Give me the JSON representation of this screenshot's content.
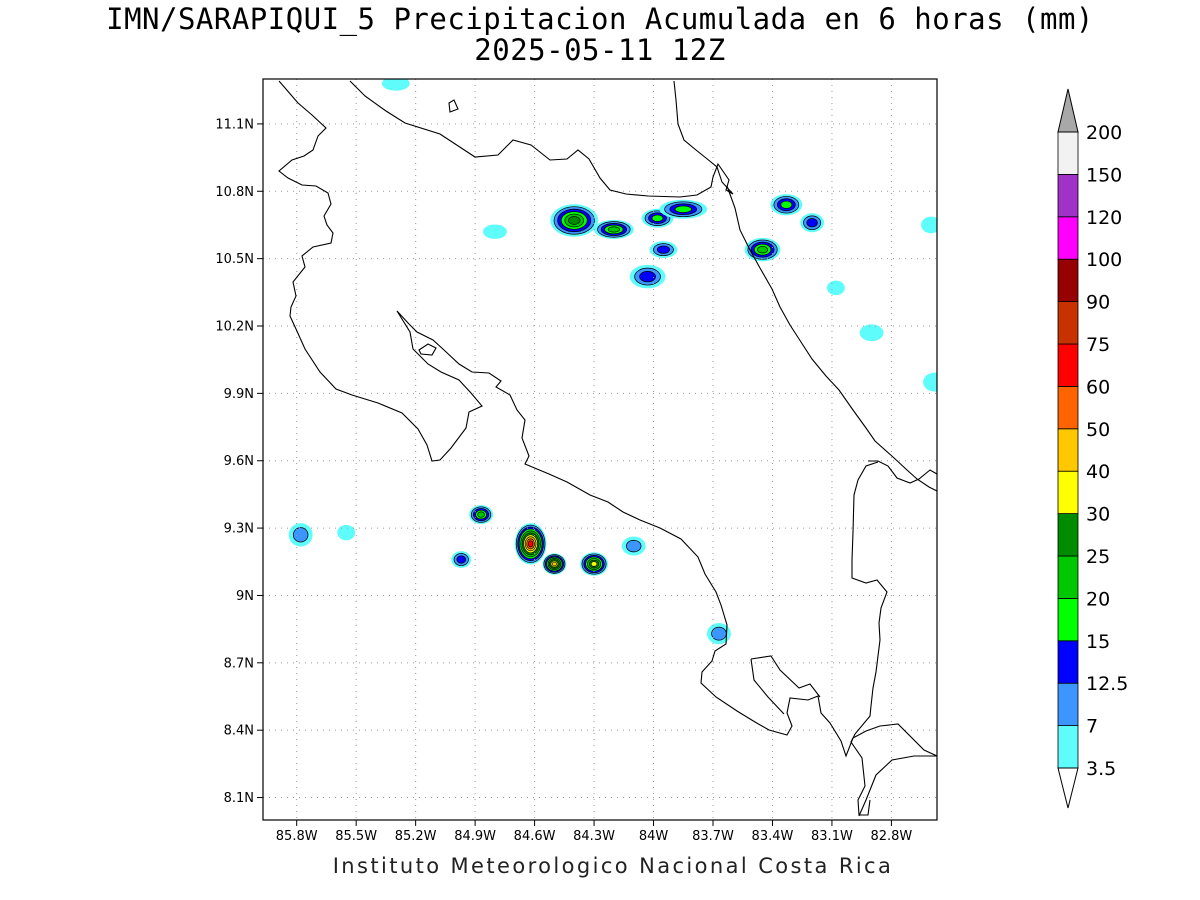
{
  "title": {
    "line1": "IMN/SARAPIQUI_5 Precipitacion Acumulada en 6 horas (mm)",
    "line2": "2025-05-11 12Z"
  },
  "footer": "Instituto Meteorologico Nacional Costa Rica",
  "map": {
    "lon_range": [
      -85.97,
      -82.57
    ],
    "lat_range": [
      8.0,
      11.3
    ],
    "lat_ticks": [
      {
        "value": 11.1,
        "label": "11.1N"
      },
      {
        "value": 10.8,
        "label": "10.8N"
      },
      {
        "value": 10.5,
        "label": "10.5N"
      },
      {
        "value": 10.2,
        "label": "10.2N"
      },
      {
        "value": 9.9,
        "label": "9.9N"
      },
      {
        "value": 9.6,
        "label": "9.6N"
      },
      {
        "value": 9.3,
        "label": "9.3N"
      },
      {
        "value": 9.0,
        "label": "9N"
      },
      {
        "value": 8.7,
        "label": "8.7N"
      },
      {
        "value": 8.4,
        "label": "8.4N"
      },
      {
        "value": 8.1,
        "label": "8.1N"
      }
    ],
    "lon_ticks": [
      {
        "value": -85.8,
        "label": "85.8W"
      },
      {
        "value": -85.5,
        "label": "85.5W"
      },
      {
        "value": -85.2,
        "label": "85.2W"
      },
      {
        "value": -84.9,
        "label": "84.9W"
      },
      {
        "value": -84.6,
        "label": "84.6W"
      },
      {
        "value": -84.3,
        "label": "84.3W"
      },
      {
        "value": -84.0,
        "label": "84W"
      },
      {
        "value": -83.7,
        "label": "83.7W"
      },
      {
        "value": -83.4,
        "label": "83.4W"
      },
      {
        "value": -83.1,
        "label": "83.1W"
      },
      {
        "value": -82.8,
        "label": "82.8W"
      }
    ],
    "grid": true
  },
  "colorbar": {
    "levels": [
      {
        "label": "3.5",
        "color": "#ffffff"
      },
      {
        "label": "7",
        "color": "#5ffcfc"
      },
      {
        "label": "12.5",
        "color": "#3c96ff"
      },
      {
        "label": "15",
        "color": "#0000ff"
      },
      {
        "label": "20",
        "color": "#00ff00"
      },
      {
        "label": "25",
        "color": "#00c800"
      },
      {
        "label": "30",
        "color": "#008c00"
      },
      {
        "label": "40",
        "color": "#ffff00"
      },
      {
        "label": "50",
        "color": "#ffc800"
      },
      {
        "label": "60",
        "color": "#ff6400"
      },
      {
        "label": "75",
        "color": "#ff0000"
      },
      {
        "label": "90",
        "color": "#c83200"
      },
      {
        "label": "100",
        "color": "#960000"
      },
      {
        "label": "120",
        "color": "#ff00ff"
      },
      {
        "label": "150",
        "color": "#a032c8"
      },
      {
        "label": "200",
        "color": "#f2f2f2"
      }
    ],
    "bottom_arrow_color": "#ffffff",
    "top_arrow_color": "#a8a8a8"
  },
  "precip_cells": [
    {
      "lon": -84.4,
      "lat": 10.67,
      "rx": 0.09,
      "ry": 0.05,
      "max": 30
    },
    {
      "lon": -84.2,
      "lat": 10.63,
      "rx": 0.07,
      "ry": 0.02,
      "max": 25
    },
    {
      "lon": -83.98,
      "lat": 10.68,
      "rx": 0.05,
      "ry": 0.02,
      "max": 20
    },
    {
      "lon": -83.85,
      "lat": 10.72,
      "rx": 0.09,
      "ry": 0.02,
      "max": 20
    },
    {
      "lon": -83.45,
      "lat": 10.54,
      "rx": 0.06,
      "ry": 0.03,
      "max": 25
    },
    {
      "lon": -83.33,
      "lat": 10.74,
      "rx": 0.05,
      "ry": 0.025,
      "max": 20
    },
    {
      "lon": -84.03,
      "lat": 10.42,
      "rx": 0.06,
      "ry": 0.03,
      "max": 15
    },
    {
      "lon": -83.95,
      "lat": 10.54,
      "rx": 0.04,
      "ry": 0.015,
      "max": 15
    },
    {
      "lon": -83.2,
      "lat": 10.66,
      "rx": 0.03,
      "ry": 0.02,
      "max": 15
    },
    {
      "lon": -84.62,
      "lat": 9.23,
      "rx": 0.05,
      "ry": 0.07,
      "max": 75
    },
    {
      "lon": -84.5,
      "lat": 9.14,
      "rx": 0.03,
      "ry": 0.025,
      "max": 50
    },
    {
      "lon": -84.3,
      "lat": 9.14,
      "rx": 0.04,
      "ry": 0.03,
      "max": 40
    },
    {
      "lon": -84.87,
      "lat": 9.36,
      "rx": 0.03,
      "ry": 0.02,
      "max": 25
    },
    {
      "lon": -85.78,
      "lat": 9.27,
      "rx": 0.03,
      "ry": 0.03,
      "max": 12.5
    },
    {
      "lon": -84.97,
      "lat": 9.16,
      "rx": 0.02,
      "ry": 0.015,
      "max": 15
    },
    {
      "lon": -83.67,
      "lat": 8.83,
      "rx": 0.03,
      "ry": 0.025,
      "max": 12.5
    },
    {
      "lon": -84.1,
      "lat": 9.22,
      "rx": 0.03,
      "ry": 0.02,
      "max": 12.5
    },
    {
      "lon": -82.58,
      "lat": 9.95,
      "rx": 0.03,
      "ry": 0.02,
      "max": 7
    },
    {
      "lon": -82.9,
      "lat": 10.17,
      "rx": 0.03,
      "ry": 0.015,
      "max": 7
    },
    {
      "lon": -82.6,
      "lat": 10.65,
      "rx": 0.02,
      "ry": 0.015,
      "max": 7
    },
    {
      "lon": -84.8,
      "lat": 10.62,
      "rx": 0.03,
      "ry": 0.01,
      "max": 7
    },
    {
      "lon": -85.55,
      "lat": 9.28,
      "rx": 0.015,
      "ry": 0.012,
      "max": 7
    },
    {
      "lon": -85.3,
      "lat": 11.28,
      "rx": 0.04,
      "ry": 0.01,
      "max": 7
    },
    {
      "lon": -83.08,
      "lat": 10.37,
      "rx": 0.015,
      "ry": 0.01,
      "max": 7
    }
  ]
}
